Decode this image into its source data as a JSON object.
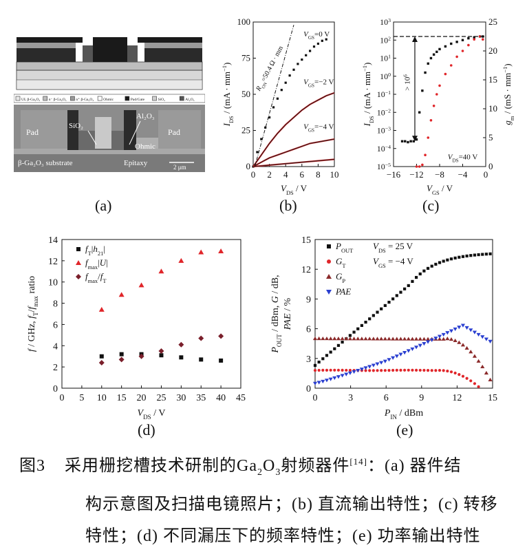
{
  "panel_labels": [
    "(a)",
    "(b)",
    "(c)",
    "(d)",
    "(e)"
  ],
  "caption": {
    "number": "图3",
    "text_before": "采用栅挖槽技术研制的Ga",
    "sub1": "2",
    "mid": "O",
    "sub2": "3",
    "text_after": "射频器件",
    "ref": "[14]",
    "line1_tail": "：(a) 器件结",
    "line2": "构示意图及扫描电镜照片；(b) 直流输出特性；(c) 转移",
    "line3": "特性；(d) 不同漏压下的频率特性；(e) 功率输出特性"
  },
  "panel_a": {
    "legend_items": [
      "UL β-Ga₂O₃",
      "n⁻ β-Ga₂O₃",
      "n⁺ β-Ga₂O₃",
      "Ohmic",
      "Pad/Gate",
      "SiO₂",
      "Al₂O₃"
    ],
    "labels": {
      "pad_left": "Pad",
      "pad_right": "Pad",
      "sio2": "SiO₂",
      "al2o3": "Al₂O₃",
      "ohmic": "Ohmic",
      "substrate": "β-Ga₂O₃ substrate",
      "epitaxy": "Epitaxy",
      "scale": "2 μm"
    },
    "colors": {
      "sem_bg": "#8a8a8a",
      "metal": "#2a2a2a"
    }
  },
  "chart_data": [
    {
      "id": "b",
      "type": "line",
      "xlabel": "V_DS / V",
      "ylabel": "I_DS / (mA · mm⁻¹)",
      "xlim": [
        0,
        10
      ],
      "ylim": [
        0,
        100
      ],
      "xticks": [
        0,
        2,
        4,
        6,
        8,
        10
      ],
      "yticks": [
        0,
        25,
        50,
        75,
        100
      ],
      "annotation": "R_ON = 50.4 Ω · mm",
      "series": [
        {
          "name": "V_GS = 0 V",
          "x": [
            0,
            0.5,
            1,
            1.5,
            2,
            2.5,
            3,
            3.5,
            4,
            4.5,
            5,
            5.5,
            6,
            6.5,
            7,
            7.5,
            8,
            8.5,
            9
          ],
          "y": [
            0,
            10,
            19,
            27,
            34,
            41,
            47,
            53,
            58,
            63,
            67,
            71,
            74,
            77,
            80,
            83,
            85,
            87,
            88
          ]
        },
        {
          "name": "V_GS = −2 V",
          "x": [
            0,
            1,
            2,
            3,
            4,
            5,
            6,
            7,
            8,
            9,
            10
          ],
          "y": [
            0,
            8,
            16,
            23,
            29,
            34,
            39,
            43,
            46,
            49,
            51
          ]
        },
        {
          "name": "V_GS = −4 V",
          "x": [
            0,
            1,
            2,
            3,
            4,
            5,
            6,
            7,
            8,
            9,
            10
          ],
          "y": [
            0,
            3,
            6,
            8,
            10,
            12,
            14,
            16,
            17,
            18,
            19
          ]
        },
        {
          "name": "",
          "x": [
            0,
            2,
            4,
            6,
            8,
            10
          ],
          "y": [
            0,
            1,
            2,
            3,
            4,
            5
          ]
        }
      ],
      "colors": {
        "black": "#111111",
        "red": "#c0282a"
      }
    },
    {
      "id": "c",
      "type": "line",
      "xlabel": "V_GS / V",
      "ylabel": "I_DS / (mA · mm⁻¹)",
      "y2label": "g_m / (mS · mm⁻¹)",
      "xlim": [
        -16,
        0
      ],
      "ylim_log": [
        -5,
        3
      ],
      "y2lim": [
        0,
        25
      ],
      "xticks": [
        -16,
        -12,
        -8,
        -4,
        0
      ],
      "yticks_exp": [
        -5,
        -4,
        -3,
        -2,
        -1,
        0,
        1,
        2,
        3
      ],
      "y2ticks": [
        0,
        5,
        10,
        15,
        20,
        25
      ],
      "annotation_ratio": "> 10⁶",
      "annotation_vds": "V_DS = 40 V",
      "ids_log": {
        "x": [
          -14.5,
          -14,
          -13.5,
          -13,
          -12.5,
          -12,
          -11.5,
          -11,
          -10.5,
          -10,
          -9.5,
          -9,
          -8.5,
          -8,
          -7,
          -6,
          -5,
          -4,
          -3,
          -2,
          -1,
          -0.5
        ],
        "y_exp": [
          -3.6,
          -3.6,
          -3.65,
          -3.6,
          -3.6,
          -3.5,
          -2,
          -0.8,
          0.2,
          0.7,
          1,
          1.2,
          1.35,
          1.5,
          1.65,
          1.8,
          1.9,
          2,
          2.1,
          2.15,
          2.2,
          2.2
        ]
      },
      "gm": {
        "x": [
          -12,
          -11.5,
          -11,
          -10.5,
          -10,
          -9.5,
          -9,
          -8.5,
          -8,
          -7,
          -6,
          -5,
          -4,
          -3,
          -2,
          -1,
          -0.5
        ],
        "y": [
          0,
          0,
          0.3,
          2,
          5,
          8,
          10.5,
          12.5,
          14,
          16,
          17.5,
          19,
          20,
          21,
          22,
          22.5,
          22
        ]
      },
      "colors": {
        "black": "#111111",
        "red": "#e0262a"
      }
    },
    {
      "id": "d",
      "type": "scatter",
      "xlabel": "V_DS / V",
      "ylabel": "f / GHz, f_T/f_max ratio",
      "xlim": [
        0,
        45
      ],
      "ylim": [
        0,
        14
      ],
      "xticks": [
        0,
        5,
        10,
        15,
        20,
        25,
        30,
        35,
        40,
        45
      ],
      "yticks": [
        0,
        2,
        4,
        6,
        8,
        10,
        12,
        14
      ],
      "series": [
        {
          "name": "f_T |h₂₁|",
          "marker": "square",
          "color": "#111111",
          "x": [
            10,
            15,
            20,
            25,
            30,
            35,
            40
          ],
          "y": [
            3.0,
            3.2,
            3.2,
            3.1,
            2.9,
            2.7,
            2.6
          ]
        },
        {
          "name": "f_max |U|",
          "marker": "triangle",
          "color": "#e0262a",
          "x": [
            10,
            15,
            20,
            25,
            30,
            35,
            40
          ],
          "y": [
            7.4,
            8.8,
            9.7,
            11.0,
            12.0,
            12.8,
            12.9
          ]
        },
        {
          "name": "f_max/f_T",
          "marker": "diamond",
          "color": "#7a1f2b",
          "x": [
            10,
            15,
            20,
            25,
            30,
            35,
            40
          ],
          "y": [
            2.4,
            2.7,
            3.0,
            3.5,
            4.1,
            4.7,
            4.9
          ]
        }
      ]
    },
    {
      "id": "e",
      "type": "scatter",
      "xlabel": "P_IN / dBm",
      "ylabel": "P_OUT / dBm, G / dB, PAE / %",
      "xlim": [
        0,
        15
      ],
      "ylim": [
        0,
        15
      ],
      "xticks": [
        0,
        3,
        6,
        9,
        12,
        15
      ],
      "yticks": [
        0,
        3,
        6,
        9,
        12,
        15
      ],
      "conditions": [
        "V_DS = 25 V",
        "V_GS = −4 V"
      ],
      "series": [
        {
          "name": "P_OUT",
          "marker": "square",
          "color": "#111111"
        },
        {
          "name": "G_T",
          "marker": "circle",
          "color": "#e0262a"
        },
        {
          "name": "G_P",
          "marker": "triangle",
          "color": "#8b2a2a"
        },
        {
          "name": "PAE",
          "marker": "triangle-down",
          "color": "#2a3fd0"
        }
      ]
    }
  ]
}
